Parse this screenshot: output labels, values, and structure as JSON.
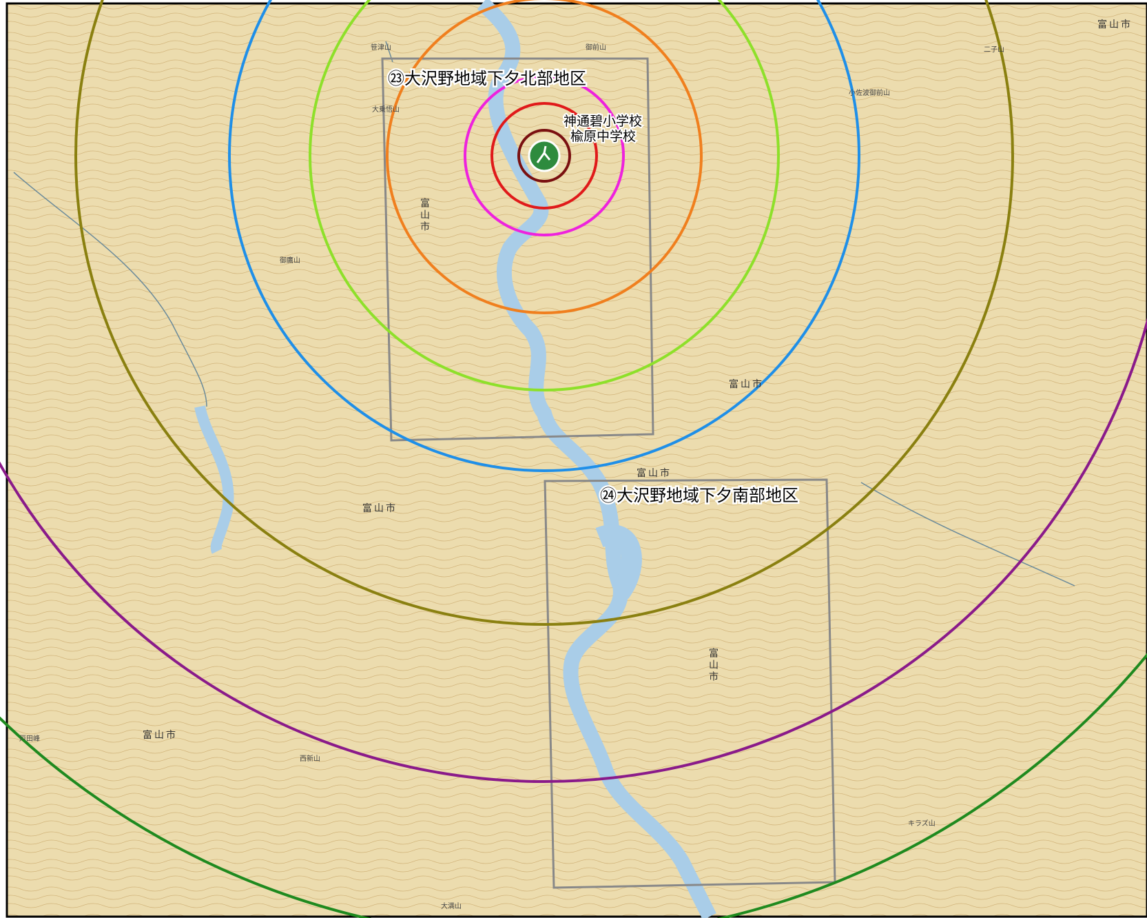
{
  "areas": [
    "㉓大沢野地域下夕北部地区",
    "㉔大沢野地域下夕南部地区"
  ],
  "schools": [
    "神通碧小学校",
    "楡原中学校"
  ],
  "city_labels": [
    "富山市",
    "富山市",
    "富山市",
    "富山市",
    "富山市",
    "富山市",
    "富山市"
  ],
  "peaks": [
    "笹津山",
    "御前山",
    "大乗悟山",
    "二子山",
    "小佐波御前山",
    "御鷹山",
    "西新山",
    "大満山",
    "キラズ山",
    "戸田峰"
  ]
}
